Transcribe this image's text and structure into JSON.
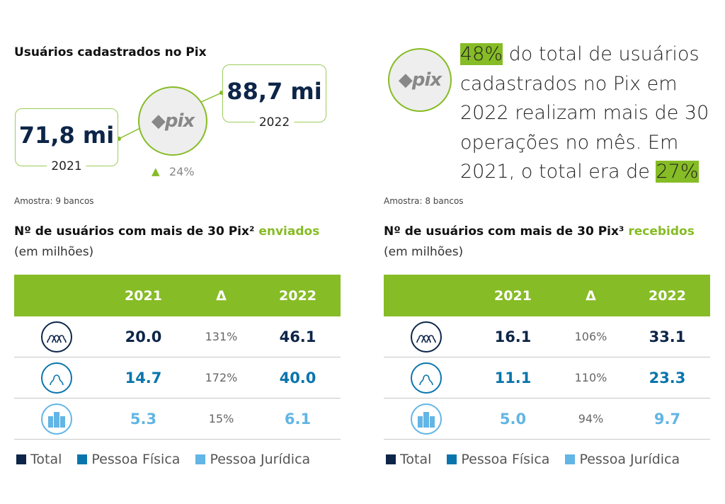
{
  "left_top": {
    "title": "Usuários cadastrados no Pix",
    "value_2021": "71,8 mi",
    "year_2021": "2021",
    "value_2022": "88,7 mi",
    "year_2022": "2022",
    "logo_text": "pix",
    "growth": "24%",
    "sample": "Amostra: 9 bancos"
  },
  "right_top": {
    "logo_text": "pix",
    "highlight_1": "48%",
    "text_1": " do total de usuários cadastrados no Pix em 2022 realizam mais de 30 operações no mês. Em 2021, o total era de ",
    "highlight_2": "27%",
    "sample": "Amostra: 8 bancos"
  },
  "colors": {
    "green": "#86bc25",
    "total": "#0d2548",
    "pessoa_fisica": "#0a75ad",
    "pessoa_juridica": "#62b5e5"
  },
  "tables": [
    {
      "title": "Nº de usuários com mais de 30 Pix² ",
      "title_accent": "enviados",
      "subtitle": "(em milhões)",
      "headers": [
        "2021",
        "Δ",
        "2022"
      ],
      "rows": [
        {
          "icon": "group-icon",
          "v2021": "20.0",
          "delta": "131%",
          "v2022": "46.1"
        },
        {
          "icon": "person-icon",
          "v2021": "14.7",
          "delta": "172%",
          "v2022": "40.0"
        },
        {
          "icon": "building-icon",
          "v2021": "5.3",
          "delta": "15%",
          "v2022": "6.1"
        }
      ]
    },
    {
      "title": "Nº de usuários com mais de 30 Pix³ ",
      "title_accent": "recebidos",
      "subtitle": "(em milhões)",
      "headers": [
        "2021",
        "Δ",
        "2022"
      ],
      "rows": [
        {
          "icon": "group-icon",
          "v2021": "16.1",
          "delta": "106%",
          "v2022": "33.1"
        },
        {
          "icon": "person-icon",
          "v2021": "11.1",
          "delta": "110%",
          "v2022": "23.3"
        },
        {
          "icon": "building-icon",
          "v2021": "5.0",
          "delta": "94%",
          "v2022": "9.7"
        }
      ]
    }
  ],
  "legend": [
    "Total",
    "Pessoa Física",
    "Pessoa Jurídica"
  ]
}
